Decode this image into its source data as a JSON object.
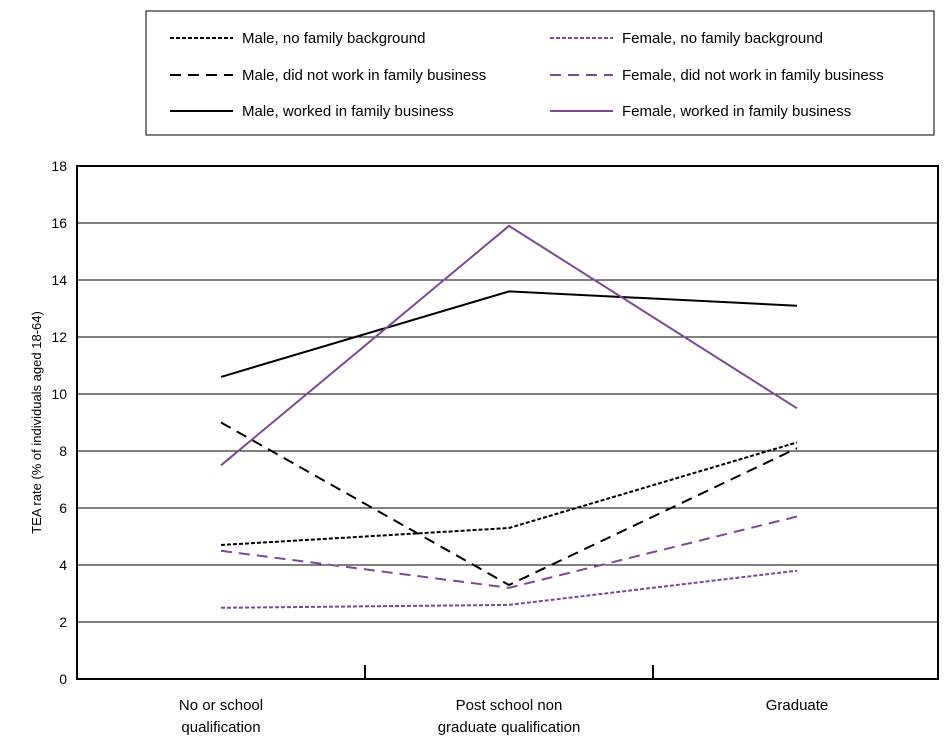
{
  "chart_data": {
    "type": "line",
    "ylabel": "TEA rate (% of individuals aged 18-64)",
    "xlabel": "",
    "ylim": [
      0,
      18
    ],
    "yticks": [
      0,
      2,
      4,
      6,
      8,
      10,
      12,
      14,
      16,
      18
    ],
    "grid": "horizontal",
    "legend_position": "top",
    "categories": [
      [
        "No or school",
        "qualification"
      ],
      [
        "Post school non",
        "graduate qualification"
      ],
      [
        "Graduate"
      ]
    ],
    "series": [
      {
        "name": "Male, no family background",
        "values": [
          4.7,
          5.3,
          8.3
        ],
        "color": "#000000",
        "dash": "dotted"
      },
      {
        "name": "Male, did not work in family business",
        "values": [
          9.0,
          3.3,
          8.1
        ],
        "color": "#000000",
        "dash": "dashed"
      },
      {
        "name": "Male, worked in family business",
        "values": [
          10.6,
          13.6,
          13.1
        ],
        "color": "#000000",
        "dash": "solid"
      },
      {
        "name": "Female, no family background",
        "values": [
          2.5,
          2.6,
          3.8
        ],
        "color": "#7B4A97",
        "dash": "dotted"
      },
      {
        "name": "Female, did not work in family business",
        "values": [
          4.5,
          3.2,
          5.7
        ],
        "color": "#7B4A97",
        "dash": "dashed"
      },
      {
        "name": "Female, worked in family business",
        "values": [
          7.5,
          15.9,
          9.5
        ],
        "color": "#7B4A97",
        "dash": "solid"
      }
    ]
  }
}
